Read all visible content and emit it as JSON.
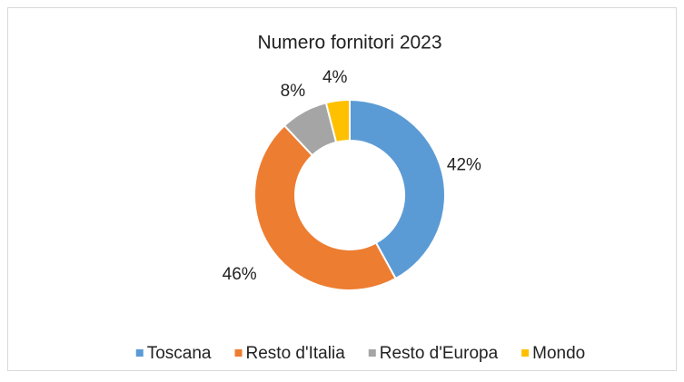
{
  "chart_data": {
    "type": "donut",
    "title": "Numero fornitori 2023",
    "categories": [
      "Toscana",
      "Resto d'Italia",
      "Resto d'Europa",
      "Mondo"
    ],
    "values": [
      42,
      46,
      8,
      4
    ],
    "value_labels": [
      "42%",
      "46%",
      "8%",
      "4%"
    ],
    "colors": [
      "#5b9bd5",
      "#ed7d31",
      "#a5a5a5",
      "#ffc000"
    ],
    "legend": "bottom"
  }
}
